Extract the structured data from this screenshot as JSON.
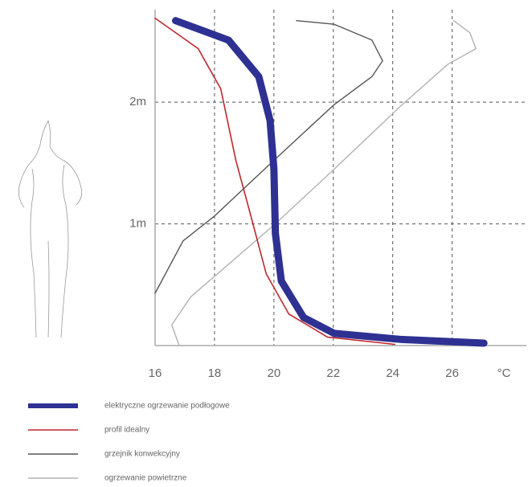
{
  "chart_data": {
    "type": "line",
    "x_label": "°C",
    "xlim": [
      16,
      28.5
    ],
    "ylim": [
      0,
      2.8
    ],
    "xticks": [
      16,
      18,
      20,
      22,
      24,
      26
    ],
    "yticks": [
      {
        "value": 1,
        "label": "1m"
      },
      {
        "value": 2,
        "label": "2m"
      }
    ],
    "grid": true,
    "series": [
      {
        "name": "elektryczne ogrzewanie podłogowe",
        "color": "#2e3192",
        "width": 9,
        "x": [
          16.69,
          18.47,
          19.49,
          19.87,
          20.0,
          20.05,
          20.25,
          21.0,
          22.03,
          24.3,
          27.07
        ],
        "y": [
          2.67,
          2.51,
          2.21,
          1.85,
          1.45,
          0.92,
          0.53,
          0.23,
          0.1,
          0.05,
          0.02
        ]
      },
      {
        "name": "profil idealny",
        "color": "#c0272d",
        "width": 1.6,
        "x": [
          16,
          17.45,
          18.21,
          18.72,
          19.23,
          19.74,
          20.5,
          21.8,
          24.07
        ],
        "y": [
          2.69,
          2.44,
          2.11,
          1.52,
          1.06,
          0.59,
          0.26,
          0.07,
          0.01
        ]
      },
      {
        "name": "grzejnik konwekcyjny",
        "color": "#555555",
        "width": 1.4,
        "x": [
          16,
          16.94,
          17.98,
          19.99,
          22.03,
          23.3,
          23.66,
          23.3,
          22.03,
          20.76
        ],
        "y": [
          0.43,
          0.86,
          1.06,
          1.52,
          1.98,
          2.21,
          2.34,
          2.51,
          2.64,
          2.67
        ]
      },
      {
        "name": "ogrzewanie powietrzne",
        "color": "#b3b3b3",
        "width": 1.4,
        "x": [
          16.81,
          16.56,
          17.2,
          20.0,
          22.03,
          24.32,
          25.85,
          26.8,
          26.6,
          26.05
        ],
        "y": [
          0,
          0.17,
          0.4,
          0.99,
          1.45,
          1.98,
          2.31,
          2.44,
          2.57,
          2.67
        ]
      }
    ]
  }
}
